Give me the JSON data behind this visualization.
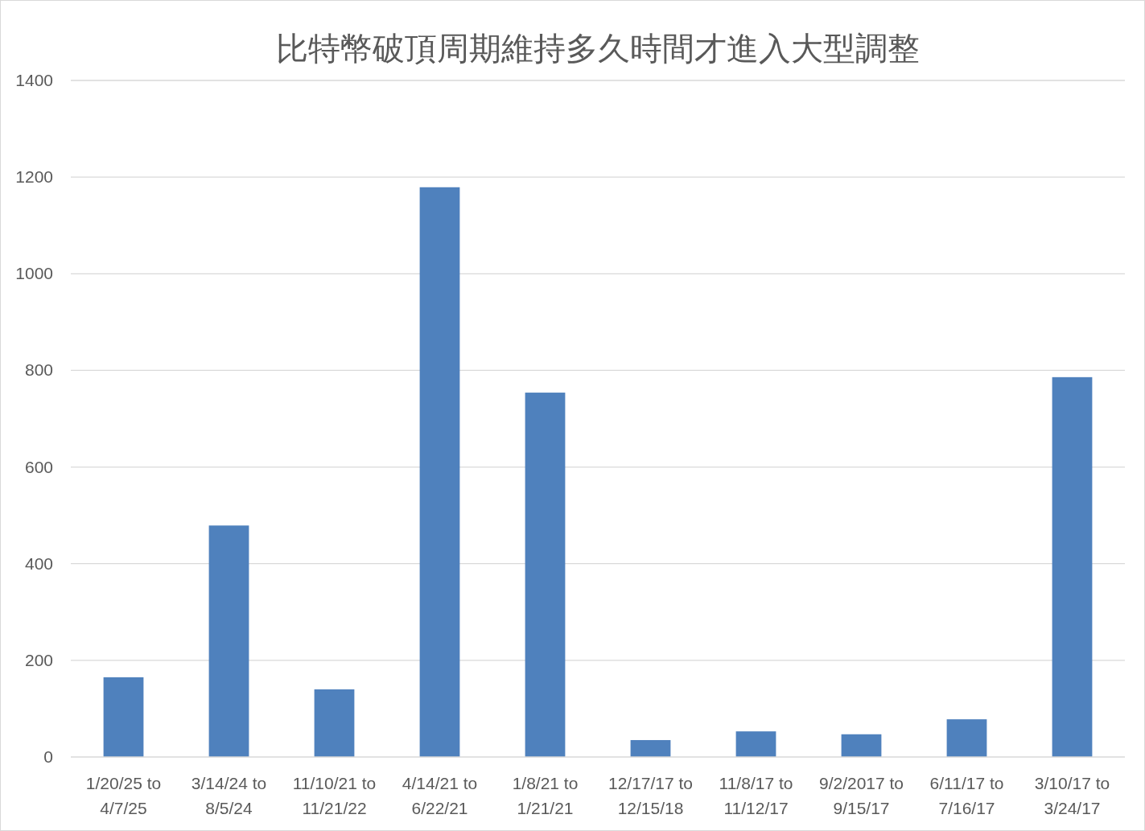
{
  "chart_data": {
    "type": "bar",
    "title": "比特幣破頂周期維持多久時間才進入大型調整",
    "categories": [
      "1/20/25 to 4/7/25",
      "3/14/24 to 8/5/24",
      "11/10/21 to 11/21/22",
      "4/14/21 to 6/22/21",
      "1/8/21 to 1/21/21",
      "12/17/17 to 12/15/18",
      "11/8/17 to 11/12/17",
      "9/2/2017 to 9/15/17",
      "6/11/17 to 7/16/17",
      "3/10/17 to 3/24/17"
    ],
    "values": [
      165,
      479,
      140,
      1179,
      754,
      35,
      53,
      47,
      78,
      786
    ],
    "color": "#4f81bd",
    "ylim": [
      0,
      1400
    ],
    "yticks": [
      0,
      200,
      400,
      600,
      800,
      1000,
      1200,
      1400
    ],
    "grid": "y"
  }
}
